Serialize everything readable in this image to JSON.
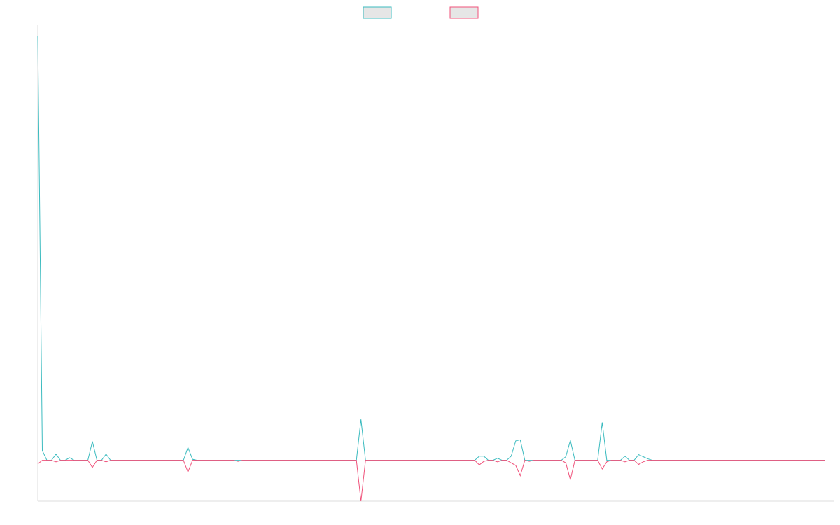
{
  "chart_data": {
    "type": "line",
    "title": "",
    "xlabel": "",
    "ylabel": "",
    "legend_position": "top-center",
    "grid": false,
    "x_count": 176,
    "ylim": [
      -0.8,
      8.6
    ],
    "series": [
      {
        "color": "#3bbbbf",
        "fill": "#e6e6e6",
        "values": [
          8.3,
          0.19,
          0,
          0,
          0.12,
          0,
          0,
          0.05,
          0,
          0,
          0,
          0,
          0.37,
          0,
          0,
          0.12,
          0,
          0,
          0,
          0,
          0,
          0,
          0,
          0,
          0,
          0,
          0,
          0,
          0,
          0,
          0,
          0,
          0,
          0.25,
          0.02,
          0,
          0,
          0,
          0,
          0,
          0,
          0,
          0,
          0,
          0,
          0,
          0,
          0,
          0,
          0,
          0,
          0,
          0,
          0,
          0,
          0,
          0,
          0,
          0,
          0,
          0,
          0,
          0,
          0,
          0,
          0,
          0,
          0,
          0,
          0,
          0,
          0.8,
          0,
          0,
          0,
          0,
          0,
          0,
          0,
          0,
          0,
          0,
          0,
          0,
          0,
          0,
          0,
          0,
          0,
          0,
          0,
          0,
          0,
          0,
          0,
          0,
          0,
          0.08,
          0.08,
          0,
          0,
          0.04,
          0,
          0,
          0.08,
          0.38,
          0.4,
          0,
          0,
          0,
          0,
          0,
          0,
          0,
          0,
          0,
          0.07,
          0.39,
          0,
          0,
          0,
          0,
          0,
          0,
          0.74,
          0,
          0,
          0,
          0,
          0.08,
          0,
          0,
          0.11,
          0.07,
          0.03,
          0,
          0,
          0,
          0,
          0,
          0,
          0,
          0,
          0,
          0,
          0,
          0,
          0,
          0,
          0,
          0,
          0,
          0,
          0,
          0,
          0,
          0,
          0,
          0,
          0,
          0,
          0,
          0,
          0,
          0,
          0,
          0,
          0,
          0,
          0,
          0,
          0,
          0,
          0
        ]
      },
      {
        "color": "#f0517a",
        "fill": "#e6e6e6",
        "values": [
          -0.07,
          0,
          0,
          0,
          -0.03,
          0,
          0,
          0,
          0,
          0,
          0,
          0,
          -0.14,
          0,
          0,
          -0.03,
          0,
          0,
          0,
          0,
          0,
          0,
          0,
          0,
          0,
          0,
          0,
          0,
          0,
          0,
          0,
          0,
          0,
          -0.23,
          0,
          0,
          0,
          0,
          0,
          0,
          0,
          0,
          0,
          0,
          -0.02,
          0,
          0,
          0,
          0,
          0,
          0,
          0,
          0,
          0,
          0,
          0,
          0,
          0,
          0,
          0,
          0,
          0,
          0,
          0,
          0,
          0,
          0,
          0,
          0,
          0,
          0,
          -0.8,
          0,
          0,
          0,
          0,
          0,
          0,
          0,
          0,
          0,
          0,
          0,
          0,
          0,
          0,
          0,
          0,
          0,
          0,
          0,
          0,
          0,
          0,
          0,
          0,
          0,
          -0.09,
          -0.02,
          0,
          0,
          -0.03,
          0,
          0,
          -0.05,
          -0.1,
          -0.3,
          0,
          -0.02,
          0,
          0,
          0,
          0,
          0,
          0,
          0,
          -0.05,
          -0.38,
          0,
          0,
          0,
          0,
          0,
          0,
          -0.17,
          -0.03,
          0,
          0,
          0,
          -0.03,
          0,
          0,
          -0.08,
          -0.03,
          0,
          0,
          0,
          0,
          0,
          0,
          0,
          0,
          0,
          0,
          0,
          0,
          0,
          0,
          0,
          0,
          0,
          0,
          0,
          0,
          0,
          0,
          0,
          0,
          0,
          0,
          0,
          0,
          0,
          0,
          0,
          0,
          0,
          0,
          0,
          0,
          0,
          0,
          0,
          0
        ]
      }
    ]
  }
}
